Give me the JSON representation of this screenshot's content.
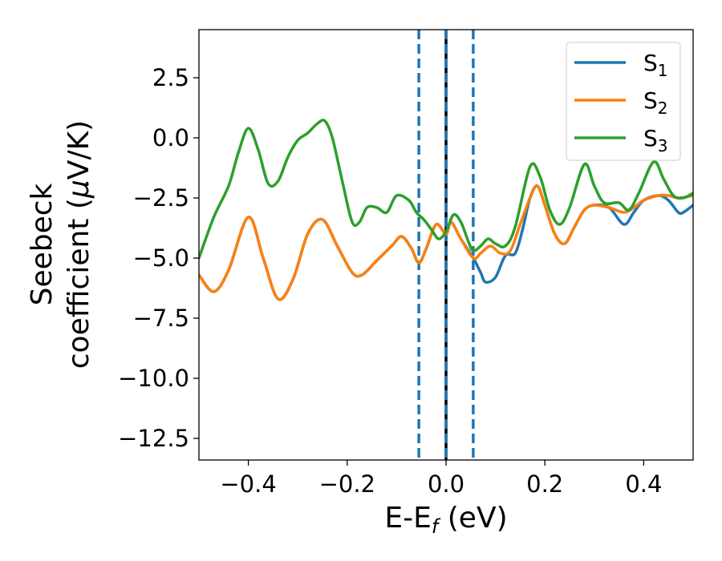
{
  "chart_data": {
    "type": "line",
    "title": "",
    "xlabel": {
      "main": "E-E",
      "sub": "f",
      "tail": " (eV)"
    },
    "ylabel": {
      "line1": "Seebeck",
      "line2_pre": "coefficient  (",
      "line2_mu": "μ",
      "line2_post": "V/K)"
    },
    "xlim": [
      -0.5,
      0.5
    ],
    "ylim": [
      -13.4,
      4.5
    ],
    "xticks": [
      -0.4,
      -0.2,
      0.0,
      0.2,
      0.4
    ],
    "xtick_labels": [
      "−0.4",
      "−0.2",
      "0.0",
      "0.2",
      "0.4"
    ],
    "yticks": [
      2.5,
      0.0,
      -2.5,
      -5.0,
      -7.5,
      -10.0,
      -12.5
    ],
    "ytick_labels": [
      "2.5",
      "0.0",
      "−2.5",
      "−5.0",
      "−7.5",
      "−10.0",
      "−12.5"
    ],
    "grid": false,
    "legend_position": "top-right",
    "vlines": [
      {
        "x": -0.055,
        "style": "dashed",
        "color": "#1f77b4"
      },
      {
        "x": 0.0,
        "style": "solid",
        "color": "#000000"
      },
      {
        "x": 0.0,
        "style": "dashed",
        "color": "#1f77b4"
      },
      {
        "x": 0.055,
        "style": "dashed",
        "color": "#1f77b4"
      }
    ],
    "series": [
      {
        "name": "S",
        "sub": "1",
        "color": "#1f77b4",
        "x": [
          -0.5,
          -0.47,
          -0.44,
          -0.4,
          -0.37,
          -0.34,
          -0.31,
          -0.28,
          -0.25,
          -0.22,
          -0.19,
          -0.17,
          -0.14,
          -0.11,
          -0.09,
          -0.07,
          -0.055,
          -0.04,
          -0.02,
          0.0,
          0.01,
          0.03,
          0.055,
          0.07,
          0.08,
          0.1,
          0.12,
          0.14,
          0.155,
          0.17,
          0.185,
          0.2,
          0.22,
          0.24,
          0.26,
          0.28,
          0.3,
          0.33,
          0.36,
          0.38,
          0.4,
          0.43,
          0.45,
          0.47,
          0.48,
          0.5
        ],
        "y": [
          -5.7,
          -6.4,
          -5.5,
          -3.3,
          -5.0,
          -6.7,
          -5.9,
          -4.0,
          -3.4,
          -4.5,
          -5.6,
          -5.7,
          -5.1,
          -4.5,
          -4.1,
          -4.6,
          -5.2,
          -4.6,
          -3.6,
          -4.0,
          -3.5,
          -4.2,
          -5.0,
          -5.6,
          -6.0,
          -5.8,
          -4.9,
          -4.8,
          -3.8,
          -2.5,
          -2.0,
          -2.8,
          -4.0,
          -4.4,
          -3.7,
          -3.0,
          -2.8,
          -2.9,
          -3.6,
          -3.1,
          -2.6,
          -2.4,
          -2.6,
          -3.1,
          -3.1,
          -2.8
        ]
      },
      {
        "name": "S",
        "sub": "2",
        "color": "#ff7f0e",
        "x": [
          -0.5,
          -0.47,
          -0.44,
          -0.4,
          -0.37,
          -0.34,
          -0.31,
          -0.28,
          -0.25,
          -0.22,
          -0.19,
          -0.17,
          -0.14,
          -0.11,
          -0.09,
          -0.07,
          -0.055,
          -0.04,
          -0.02,
          0.0,
          0.01,
          0.03,
          0.055,
          0.07,
          0.09,
          0.11,
          0.13,
          0.15,
          0.17,
          0.185,
          0.2,
          0.22,
          0.24,
          0.26,
          0.28,
          0.3,
          0.33,
          0.36,
          0.38,
          0.4,
          0.43,
          0.45,
          0.47,
          0.5
        ],
        "y": [
          -5.7,
          -6.4,
          -5.5,
          -3.3,
          -5.0,
          -6.7,
          -5.9,
          -4.0,
          -3.4,
          -4.5,
          -5.6,
          -5.7,
          -5.1,
          -4.5,
          -4.1,
          -4.6,
          -5.2,
          -4.6,
          -3.6,
          -4.0,
          -3.5,
          -4.2,
          -5.0,
          -4.8,
          -4.5,
          -4.8,
          -4.7,
          -3.6,
          -2.5,
          -2.0,
          -2.8,
          -4.0,
          -4.4,
          -3.7,
          -3.0,
          -2.8,
          -2.9,
          -3.1,
          -2.9,
          -2.6,
          -2.4,
          -2.4,
          -2.5,
          -2.4
        ]
      },
      {
        "name": "S",
        "sub": "3",
        "color": "#2ca02c",
        "x": [
          -0.5,
          -0.47,
          -0.44,
          -0.42,
          -0.4,
          -0.38,
          -0.36,
          -0.34,
          -0.32,
          -0.3,
          -0.28,
          -0.26,
          -0.245,
          -0.23,
          -0.21,
          -0.19,
          -0.175,
          -0.16,
          -0.14,
          -0.12,
          -0.1,
          -0.075,
          -0.06,
          -0.045,
          -0.03,
          -0.015,
          0.0,
          0.015,
          0.03,
          0.045,
          0.055,
          0.07,
          0.085,
          0.1,
          0.12,
          0.14,
          0.17,
          0.19,
          0.21,
          0.23,
          0.25,
          0.28,
          0.3,
          0.32,
          0.35,
          0.37,
          0.39,
          0.42,
          0.44,
          0.46,
          0.48,
          0.5
        ],
        "y": [
          -5.0,
          -3.3,
          -2.0,
          -0.6,
          0.4,
          -0.5,
          -1.9,
          -1.8,
          -0.8,
          -0.1,
          0.2,
          0.6,
          0.7,
          0.0,
          -1.8,
          -3.5,
          -3.5,
          -2.9,
          -2.9,
          -3.1,
          -2.4,
          -2.6,
          -3.1,
          -3.4,
          -3.8,
          -4.2,
          -3.9,
          -3.2,
          -3.5,
          -4.3,
          -4.7,
          -4.5,
          -4.2,
          -4.4,
          -4.5,
          -3.7,
          -1.2,
          -1.6,
          -3.0,
          -3.6,
          -2.9,
          -1.1,
          -2.0,
          -2.7,
          -2.7,
          -3.0,
          -2.3,
          -1.0,
          -1.7,
          -2.4,
          -2.5,
          -2.3
        ]
      }
    ]
  }
}
